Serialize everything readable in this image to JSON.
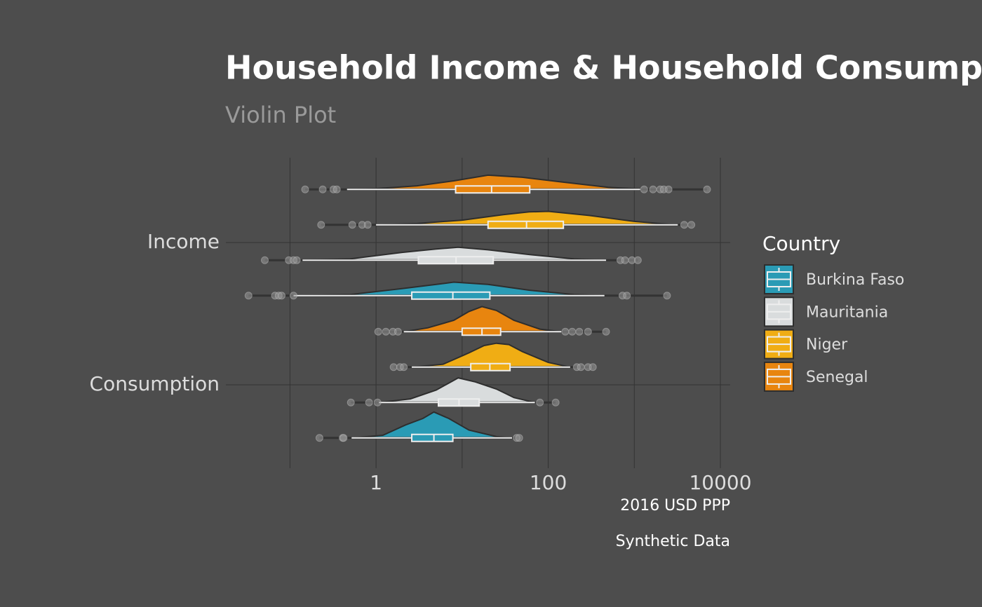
{
  "chart_data": {
    "type": "violin",
    "title": "Household Income & Household Consumption",
    "subtitle": "Violin Plot",
    "x_label": "2016 USD PPP",
    "caption": "Synthetic Data",
    "legend_title": "Country",
    "x_log": true,
    "grid": true,
    "xlim": [
      0.018,
      13000
    ],
    "xticks": [
      1,
      100,
      10000
    ],
    "x_minor_ticks": [
      0.1,
      10,
      1000
    ],
    "categories": [
      "Income",
      "Consumption"
    ],
    "series": [
      {
        "name": "Burkina Faso",
        "color": "#2a9bb5",
        "groups": [
          {
            "low": 0.11,
            "q1": 2.6,
            "median": 7.8,
            "q3": 21,
            "high": 450,
            "outliers": [
              0.033,
              0.067,
              0.074,
              0.08,
              0.11,
              730,
              820,
              2400
            ],
            "violin_x": [
              0.11,
              0.5,
              2,
              5,
              8,
              20,
              60,
              200,
              450
            ],
            "violin_density": [
              0,
              0.04,
              0.27,
              0.43,
              0.52,
              0.43,
              0.21,
              0.04,
              0
            ]
          },
          {
            "low": 0.52,
            "q1": 2.6,
            "median": 4.7,
            "q3": 7.8,
            "high": 38,
            "outliers": [
              0.22,
              0.41,
              0.42,
              43,
              46
            ],
            "violin_x": [
              0.52,
              1.2,
              2.2,
              3.5,
              4.7,
              7,
              12,
              25,
              38
            ],
            "violin_density": [
              0,
              0.1,
              0.5,
              0.75,
              1,
              0.75,
              0.3,
              0.05,
              0
            ]
          }
        ]
      },
      {
        "name": "Mauritania",
        "color": "#d9dcdd",
        "groups": [
          {
            "low": 0.14,
            "q1": 3.1,
            "median": 8.5,
            "q3": 23,
            "high": 470,
            "outliers": [
              0.051,
              0.097,
              0.11,
              0.12,
              690,
              780,
              940,
              1100
            ],
            "violin_x": [
              0.14,
              0.5,
              2,
              5,
              9,
              20,
              60,
              200,
              470
            ],
            "violin_density": [
              0,
              0.05,
              0.3,
              0.43,
              0.5,
              0.4,
              0.22,
              0.05,
              0
            ]
          },
          {
            "low": 1.08,
            "q1": 5.3,
            "median": 9.2,
            "q3": 15.8,
            "high": 70,
            "outliers": [
              0.51,
              0.83,
              1.04,
              80,
              122
            ],
            "violin_x": [
              1.08,
              2.5,
              5,
              9,
              14,
              25,
              40,
              70
            ],
            "violin_density": [
              0,
              0.14,
              0.48,
              0.95,
              0.8,
              0.52,
              0.19,
              0
            ]
          }
        ]
      },
      {
        "name": "Niger",
        "color": "#f0ad14",
        "groups": [
          {
            "low": 1,
            "q1": 20,
            "median": 56,
            "q3": 150,
            "high": 3200,
            "outliers": [
              0.23,
              0.53,
              0.69,
              0.8,
              3800,
              4600
            ],
            "violin_x": [
              1,
              3,
              10,
              30,
              60,
              100,
              300,
              1000,
              3000
            ],
            "violin_density": [
              0,
              0.05,
              0.18,
              0.39,
              0.5,
              0.52,
              0.36,
              0.13,
              0
            ]
          },
          {
            "low": 2.6,
            "q1": 12.6,
            "median": 21,
            "q3": 36,
            "high": 180,
            "outliers": [
              1.6,
              1.9,
              2.1,
              215,
              240,
              290,
              330
            ],
            "violin_x": [
              2.6,
              6,
              12,
              18,
              25,
              35,
              50,
              100,
              180
            ],
            "violin_density": [
              0,
              0.11,
              0.55,
              0.83,
              0.92,
              0.87,
              0.6,
              0.18,
              0
            ]
          }
        ]
      },
      {
        "name": "Senegal",
        "color": "#e8850f",
        "groups": [
          {
            "low": 0.46,
            "q1": 8.4,
            "median": 22,
            "q3": 61,
            "high": 1170,
            "outliers": [
              0.15,
              0.24,
              0.32,
              0.35,
              1300,
              1650,
              2000,
              2200,
              2500,
              7000
            ],
            "violin_x": [
              0.5,
              1,
              3,
              8,
              20,
              50,
              150,
              500,
              1500
            ],
            "violin_density": [
              0,
              0.03,
              0.14,
              0.33,
              0.55,
              0.47,
              0.28,
              0.08,
              0
            ]
          },
          {
            "low": 2.1,
            "q1": 10,
            "median": 17,
            "q3": 28,
            "high": 142,
            "outliers": [
              1.06,
              1.3,
              1.57,
              1.8,
              158,
              190,
              230,
              290,
              470
            ],
            "violin_x": [
              2.1,
              4,
              8,
              12,
              17,
              25,
              40,
              80,
              142
            ],
            "violin_density": [
              0,
              0.15,
              0.44,
              0.78,
              0.97,
              0.82,
              0.44,
              0.1,
              0
            ]
          }
        ]
      }
    ]
  }
}
